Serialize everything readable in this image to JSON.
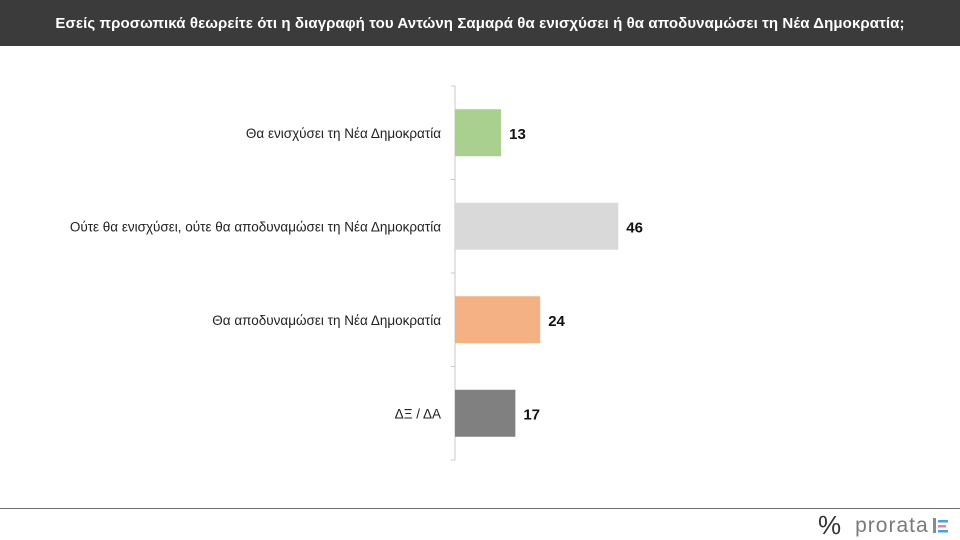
{
  "header": {
    "title": "Εσείς προσωπικά θεωρείτε ότι η διαγραφή του Αντώνη Σαμαρά θα ενισχύσει ή θα αποδυναμώσει τη Νέα Δημοκρατία;"
  },
  "chart_data": {
    "type": "bar",
    "orientation": "horizontal",
    "categories": [
      "Θα ενισχύσει τη Νέα Δημοκρατία",
      "Ούτε θα ενισχύσει, ούτε θα αποδυναμώσει τη Νέα Δημοκρατία",
      "Θα αποδυναμώσει τη Νέα Δημοκρατία",
      "ΔΞ / ΔΑ"
    ],
    "values": [
      13,
      46,
      24,
      17
    ],
    "bar_colors": [
      "#a9d08e",
      "#d9d9d9",
      "#f4b183",
      "#808080"
    ],
    "data_labels": true,
    "grid": false,
    "xlim": [
      0,
      100
    ]
  },
  "footer": {
    "logo_symbol": "%",
    "logo_text": "prorata",
    "logo_mark_colors": [
      "#4aa3df",
      "#e87fa8",
      "#8a8a8a"
    ]
  }
}
